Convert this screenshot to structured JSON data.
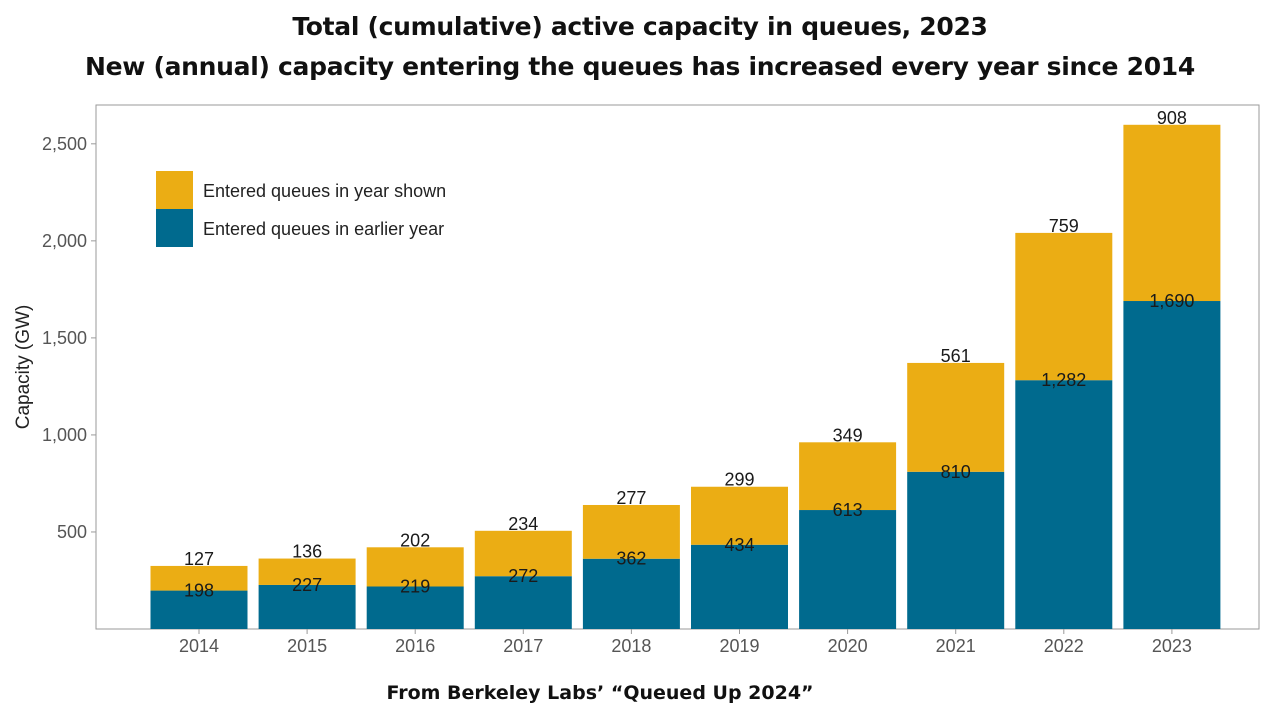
{
  "chart_data": {
    "type": "bar",
    "stacked": true,
    "title": "Total (cumulative) active capacity in queues, 2023",
    "subtitle": "New (annual) capacity entering the queues has increased every year since 2014",
    "xlabel": "",
    "ylabel": "Capacity (GW)",
    "ylim": [
      0,
      2700
    ],
    "yticks": [
      500,
      1000,
      1500,
      2000,
      2500
    ],
    "ytick_labels": [
      "500",
      "1,000",
      "1,500",
      "2,000",
      "2,500"
    ],
    "categories": [
      "2014",
      "2015",
      "2016",
      "2017",
      "2018",
      "2019",
      "2020",
      "2021",
      "2022",
      "2023"
    ],
    "series": [
      {
        "name": "Entered queues in earlier year",
        "color": "#006a8e",
        "values": [
          198,
          227,
          219,
          272,
          362,
          434,
          613,
          810,
          1282,
          1690
        ],
        "labels": [
          "198",
          "227",
          "219",
          "272",
          "362",
          "434",
          "613",
          "810",
          "1,282",
          "1,690"
        ]
      },
      {
        "name": "Entered queues in year shown",
        "color": "#ebad14",
        "values": [
          127,
          136,
          202,
          234,
          277,
          299,
          349,
          561,
          759,
          908
        ],
        "labels": [
          "127",
          "136",
          "202",
          "234",
          "277",
          "299",
          "349",
          "561",
          "759",
          "908"
        ]
      }
    ],
    "legend": {
      "position": "top-left",
      "order": [
        "Entered queues in year shown",
        "Entered queues in earlier year"
      ]
    },
    "grid": false,
    "source": "From Berkeley Labs’ “Queued Up 2024”"
  }
}
